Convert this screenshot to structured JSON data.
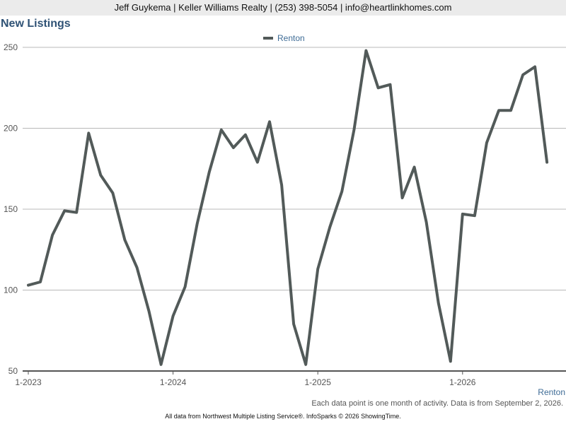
{
  "header": {
    "contact": "Jeff Guykema | Keller Williams Realty | (253) 398-5054 | info@heartlinkhomes.com"
  },
  "chart_title": "New Listings",
  "footer": {
    "note": "Each data point is one month of activity. Data is from September 2, 2026.",
    "credit": "All data from Northwest Multiple Listing Service®. InfoSparks © 2026 ShowingTime."
  },
  "colors": {
    "series": "#525a59",
    "title": "#2f5275",
    "grid": "#b8b8b8",
    "legend_text": "#3f6c96"
  },
  "chart_data": {
    "type": "line",
    "title": "New Listings",
    "xlabel": "Renton",
    "ylabel": "",
    "ylim": [
      50,
      250
    ],
    "yticks": [
      50,
      100,
      150,
      200,
      250
    ],
    "xticks": [
      "1-2023",
      "1-2024",
      "1-2025",
      "1-2026"
    ],
    "grid": true,
    "legend": "top-center",
    "x": [
      "2023-01",
      "2023-02",
      "2023-03",
      "2023-04",
      "2023-05",
      "2023-06",
      "2023-07",
      "2023-08",
      "2023-09",
      "2023-10",
      "2023-11",
      "2023-12",
      "2024-01",
      "2024-02",
      "2024-03",
      "2024-04",
      "2024-05",
      "2024-06",
      "2024-07",
      "2024-08",
      "2024-09",
      "2024-10",
      "2024-11",
      "2024-12",
      "2025-01",
      "2025-02",
      "2025-03",
      "2025-04",
      "2025-05",
      "2025-06",
      "2025-07",
      "2025-08",
      "2025-09",
      "2025-10",
      "2025-11",
      "2025-12",
      "2026-01",
      "2026-02",
      "2026-03",
      "2026-04",
      "2026-05",
      "2026-06",
      "2026-07",
      "2026-08"
    ],
    "series": [
      {
        "name": "Renton",
        "values": [
          103,
          105,
          134,
          149,
          148,
          197,
          171,
          160,
          131,
          114,
          87,
          54,
          84,
          102,
          141,
          173,
          199,
          188,
          196,
          179,
          204,
          165,
          79,
          54,
          113,
          139,
          161,
          199,
          248,
          225,
          227,
          157,
          176,
          142,
          92,
          56,
          147,
          146,
          191,
          211,
          211,
          233,
          238,
          179
        ]
      }
    ]
  }
}
